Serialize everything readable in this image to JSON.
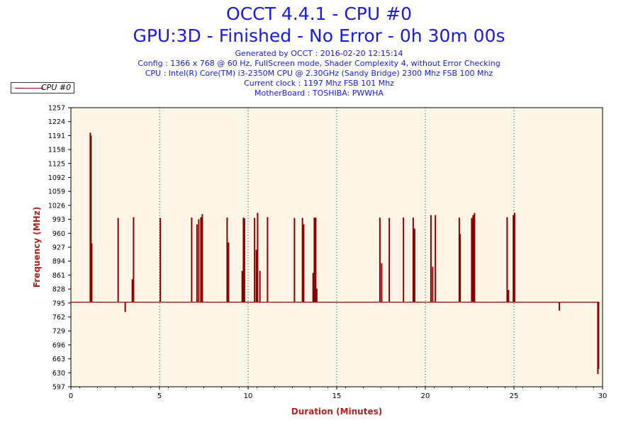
{
  "header": {
    "title": "OCCT 4.4.1 - CPU #0",
    "subtitle": "GPU:3D - Finished - No Error - 0h 30m 00s",
    "info_lines": [
      "Generated by OCCT : 2016-02-20 12:15:14",
      "Config : 1366 x 768 @ 60 Hz, FullScreen mode, Shader Complexity 4, without Error Checking",
      "CPU : Intel(R) Core(TM) i3-2350M CPU @ 2.30GHz (Sandy Bridge) 2300 Mhz FSB 100 Mhz",
      "Current clock : 1197 Mhz FSB 101 Mhz",
      "MotherBoard : TOSHIBA: PWWHA"
    ]
  },
  "colors": {
    "plot_background": "#fdf6e7",
    "series": "#8b0000",
    "axis_label": "#b22222",
    "title": "#1a1ae0"
  },
  "chart_data": {
    "type": "line",
    "xlabel": "Duration (Minutes)",
    "ylabel": "Frequency (MHz)",
    "xlim": [
      0,
      30
    ],
    "ylim": [
      597,
      1257
    ],
    "x_ticks": [
      0,
      5,
      10,
      15,
      20,
      25,
      30
    ],
    "y_ticks": [
      597,
      630,
      663,
      696,
      729,
      762,
      795,
      828,
      861,
      894,
      927,
      960,
      993,
      1026,
      1059,
      1092,
      1125,
      1158,
      1191,
      1224,
      1257
    ],
    "grid": "vertical-dotted-at-major-x",
    "legend": {
      "position": "top-left",
      "entries": [
        "CPU #0"
      ]
    },
    "series": [
      {
        "name": "CPU #0",
        "baseline": 797,
        "spikes": [
          {
            "x": 1.08,
            "y": 1197
          },
          {
            "x": 1.12,
            "y": 1190
          },
          {
            "x": 1.16,
            "y": 935
          },
          {
            "x": 2.65,
            "y": 995
          },
          {
            "x": 3.05,
            "y": 775
          },
          {
            "x": 3.45,
            "y": 850
          },
          {
            "x": 3.52,
            "y": 997
          },
          {
            "x": 5.03,
            "y": 995
          },
          {
            "x": 6.8,
            "y": 996
          },
          {
            "x": 7.1,
            "y": 980
          },
          {
            "x": 7.2,
            "y": 992
          },
          {
            "x": 7.32,
            "y": 997
          },
          {
            "x": 7.4,
            "y": 1004
          },
          {
            "x": 8.8,
            "y": 996
          },
          {
            "x": 8.88,
            "y": 937
          },
          {
            "x": 9.65,
            "y": 870
          },
          {
            "x": 9.72,
            "y": 996
          },
          {
            "x": 9.78,
            "y": 994
          },
          {
            "x": 10.35,
            "y": 995
          },
          {
            "x": 10.45,
            "y": 920
          },
          {
            "x": 10.52,
            "y": 1007
          },
          {
            "x": 10.65,
            "y": 870
          },
          {
            "x": 11.08,
            "y": 997
          },
          {
            "x": 12.6,
            "y": 995
          },
          {
            "x": 13.05,
            "y": 995
          },
          {
            "x": 13.12,
            "y": 980
          },
          {
            "x": 13.65,
            "y": 865
          },
          {
            "x": 13.72,
            "y": 996
          },
          {
            "x": 13.8,
            "y": 996
          },
          {
            "x": 13.86,
            "y": 828
          },
          {
            "x": 17.42,
            "y": 996
          },
          {
            "x": 17.52,
            "y": 888
          },
          {
            "x": 17.95,
            "y": 995
          },
          {
            "x": 18.75,
            "y": 996
          },
          {
            "x": 19.3,
            "y": 996
          },
          {
            "x": 19.38,
            "y": 970
          },
          {
            "x": 20.3,
            "y": 1002
          },
          {
            "x": 20.4,
            "y": 880
          },
          {
            "x": 20.55,
            "y": 1002
          },
          {
            "x": 21.9,
            "y": 996
          },
          {
            "x": 21.95,
            "y": 957
          },
          {
            "x": 22.6,
            "y": 995
          },
          {
            "x": 22.68,
            "y": 1002
          },
          {
            "x": 22.76,
            "y": 1007
          },
          {
            "x": 24.6,
            "y": 997
          },
          {
            "x": 24.68,
            "y": 825
          },
          {
            "x": 24.95,
            "y": 1002
          },
          {
            "x": 25.02,
            "y": 1007
          },
          {
            "x": 27.55,
            "y": 778
          },
          {
            "x": 29.72,
            "y": 628
          },
          {
            "x": 29.76,
            "y": 640
          }
        ]
      }
    ]
  }
}
